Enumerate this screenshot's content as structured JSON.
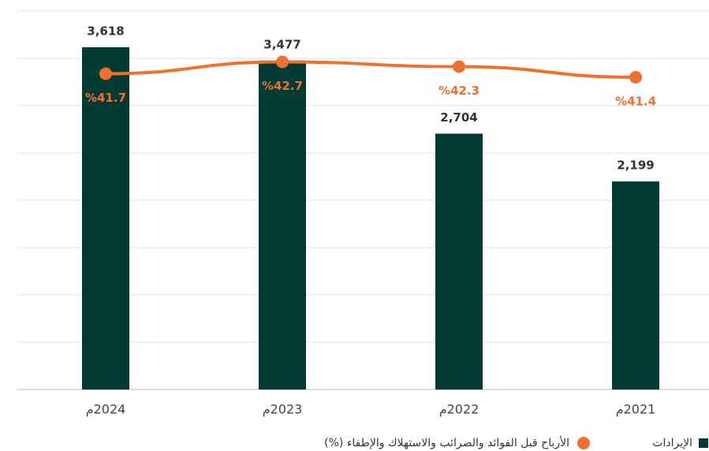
{
  "chart_data": {
    "type": "bar_line",
    "categories": [
      "2024م",
      "2023م",
      "2022م",
      "2021م"
    ],
    "series": [
      {
        "name": "الإيرادات",
        "type": "bar",
        "color": "#023b33",
        "values": [
          3618,
          3477,
          2704,
          2199
        ],
        "value_labels": [
          "3,618",
          "3,477",
          "2,704",
          "2,199"
        ]
      },
      {
        "name": "الأرباح قبل الفوائد والضرائب والاستهلاك والإطفاء (%)",
        "type": "line",
        "axis": "y2",
        "color": "#f07030",
        "values": [
          41.7,
          42.7,
          42.3,
          41.4
        ],
        "value_labels": [
          "%41.7",
          "%42.7",
          "%42.3",
          "%41.4"
        ]
      }
    ],
    "ylim": [
      0,
      4000
    ],
    "yticks": [
      0,
      500,
      1000,
      1500,
      2000,
      2500,
      3000,
      3500,
      4000
    ],
    "y2lim": [
      15,
      47
    ],
    "grid": true,
    "legend": "bottom"
  }
}
